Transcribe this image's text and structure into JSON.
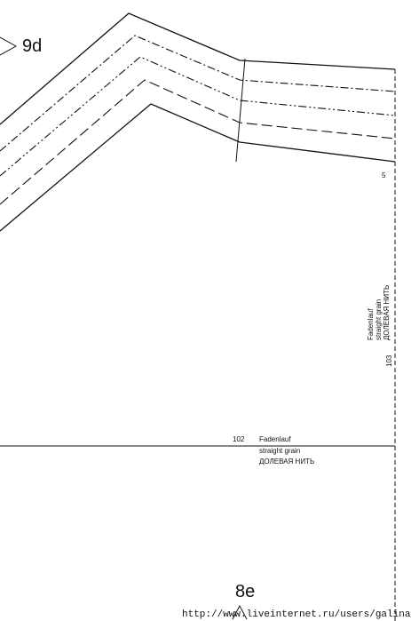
{
  "piece_top": {
    "label": "9d",
    "number": "5"
  },
  "grain_vertical": {
    "number": "103",
    "lines": [
      "Fadenlauf",
      "straight grain",
      "ДОЛЕВАЯ НИТЬ"
    ]
  },
  "grain_horizontal": {
    "number": "102",
    "lines": [
      "Fadenlauf",
      "straight grain",
      "ДОЛЕВАЯ НИТЬ"
    ]
  },
  "piece_bottom": {
    "label": "8e"
  },
  "watermark": "http://www.liveinternet.ru/users/galina_p/"
}
